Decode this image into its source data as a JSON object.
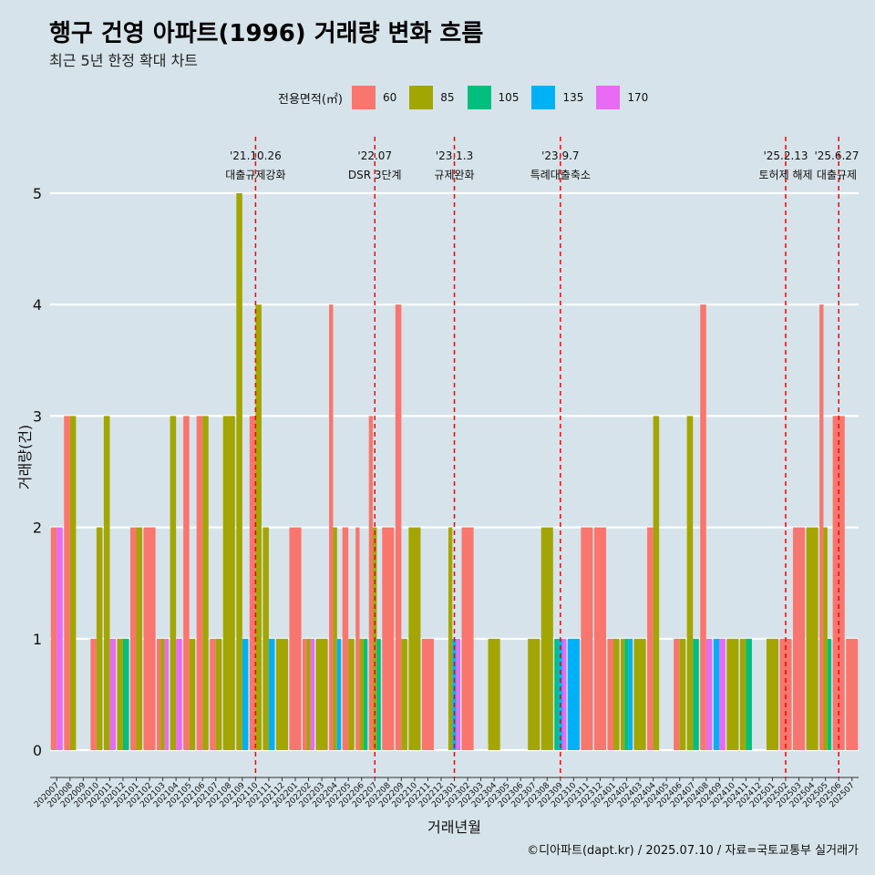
{
  "title": "행구 건영 아파트(1996) 거래량 변화 흐름",
  "subtitle": "최근 5년 한정 확대 차트",
  "caption": "©디아파트(dapt.kr) / 2025.07.10 / 자료=국토교통부 실거래가",
  "colors": {
    "60": "#f8766d",
    "85": "#a3a500",
    "105": "#00bf7d",
    "135": "#00b0f6",
    "170": "#e76bf3"
  },
  "chart_data": {
    "type": "bar",
    "xlabel": "거래년월",
    "ylabel": "거래량(건)",
    "ylim": [
      0,
      5
    ],
    "yticks": [
      0,
      1,
      2,
      3,
      4,
      5
    ],
    "legend_title": "전용면적(㎡)",
    "legend_position": "top",
    "grid": "horizontal",
    "categories": [
      "202007",
      "202008",
      "202009",
      "202010",
      "202011",
      "202012",
      "202101",
      "202102",
      "202103",
      "202104",
      "202105",
      "202106",
      "202107",
      "202108",
      "202109",
      "202110",
      "202111",
      "202112",
      "202201",
      "202202",
      "202203",
      "202204",
      "202205",
      "202206",
      "202207",
      "202208",
      "202209",
      "202210",
      "202211",
      "202212",
      "202301",
      "202302",
      "202303",
      "202304",
      "202305",
      "202306",
      "202307",
      "202308",
      "202309",
      "202310",
      "202311",
      "202312",
      "202401",
      "202402",
      "202403",
      "202404",
      "202405",
      "202406",
      "202407",
      "202408",
      "202409",
      "202410",
      "202411",
      "202412",
      "202501",
      "202502",
      "202503",
      "202504",
      "202505",
      "202506",
      "202507"
    ],
    "series": [
      {
        "name": "60",
        "values": [
          2,
          3,
          0,
          1,
          0,
          0,
          2,
          2,
          1,
          0,
          3,
          3,
          1,
          0,
          0,
          3,
          0,
          0,
          2,
          1,
          0,
          4,
          2,
          2,
          3,
          2,
          4,
          0,
          1,
          0,
          0,
          2,
          0,
          0,
          0,
          0,
          0,
          0,
          0,
          0,
          2,
          2,
          1,
          0,
          0,
          2,
          0,
          1,
          0,
          4,
          0,
          0,
          0,
          0,
          0,
          1,
          2,
          0,
          4,
          3,
          1
        ]
      },
      {
        "name": "85",
        "values": [
          0,
          3,
          0,
          2,
          3,
          1,
          2,
          0,
          1,
          3,
          1,
          3,
          1,
          3,
          5,
          4,
          2,
          1,
          0,
          1,
          1,
          2,
          1,
          1,
          2,
          0,
          1,
          2,
          0,
          0,
          2,
          0,
          0,
          1,
          0,
          0,
          1,
          2,
          0,
          0,
          0,
          0,
          1,
          1,
          1,
          3,
          0,
          1,
          3,
          0,
          0,
          1,
          1,
          0,
          1,
          0,
          0,
          2,
          2,
          0,
          0
        ]
      },
      {
        "name": "105",
        "values": [
          0,
          0,
          0,
          0,
          0,
          1,
          0,
          0,
          0,
          0,
          0,
          0,
          0,
          0,
          0,
          0,
          0,
          0,
          0,
          0,
          0,
          0,
          0,
          1,
          1,
          0,
          0,
          0,
          0,
          0,
          0,
          0,
          0,
          0,
          0,
          0,
          0,
          0,
          1,
          0,
          0,
          0,
          0,
          1,
          0,
          0,
          0,
          0,
          1,
          0,
          0,
          0,
          1,
          0,
          0,
          0,
          0,
          0,
          1,
          0,
          0
        ]
      },
      {
        "name": "135",
        "values": [
          0,
          0,
          0,
          0,
          0,
          0,
          0,
          0,
          0,
          0,
          0,
          0,
          0,
          0,
          1,
          0,
          1,
          0,
          0,
          0,
          0,
          1,
          0,
          0,
          0,
          0,
          0,
          0,
          0,
          0,
          1,
          0,
          0,
          0,
          0,
          0,
          0,
          0,
          1,
          1,
          0,
          0,
          0,
          1,
          0,
          0,
          0,
          0,
          0,
          0,
          1,
          0,
          0,
          0,
          0,
          0,
          0,
          0,
          0,
          0,
          0
        ]
      },
      {
        "name": "170",
        "values": [
          2,
          0,
          0,
          0,
          1,
          0,
          0,
          0,
          1,
          1,
          0,
          0,
          0,
          0,
          0,
          0,
          0,
          0,
          0,
          1,
          0,
          0,
          0,
          0,
          0,
          0,
          0,
          0,
          0,
          0,
          1,
          0,
          0,
          0,
          0,
          0,
          0,
          0,
          1,
          0,
          0,
          0,
          0,
          0,
          0,
          0,
          0,
          0,
          0,
          1,
          1,
          0,
          0,
          0,
          0,
          0,
          0,
          0,
          0,
          0,
          0
        ]
      }
    ],
    "events": [
      {
        "at": "202110",
        "date": "'21.10.26",
        "label": "대출규제강화"
      },
      {
        "at": "202207",
        "date": "'22.07",
        "label": "DSR 3단계"
      },
      {
        "at": "202301",
        "date": "'23.1.3",
        "label": "규제완화"
      },
      {
        "at": "202309",
        "date": "'23.9.7",
        "label": "특례대출축소"
      },
      {
        "at": "202502",
        "date": "'25.2.13",
        "label": "토허제 해제"
      },
      {
        "at": "202506",
        "date": "'25.6.27",
        "label": "대출규제"
      }
    ]
  }
}
